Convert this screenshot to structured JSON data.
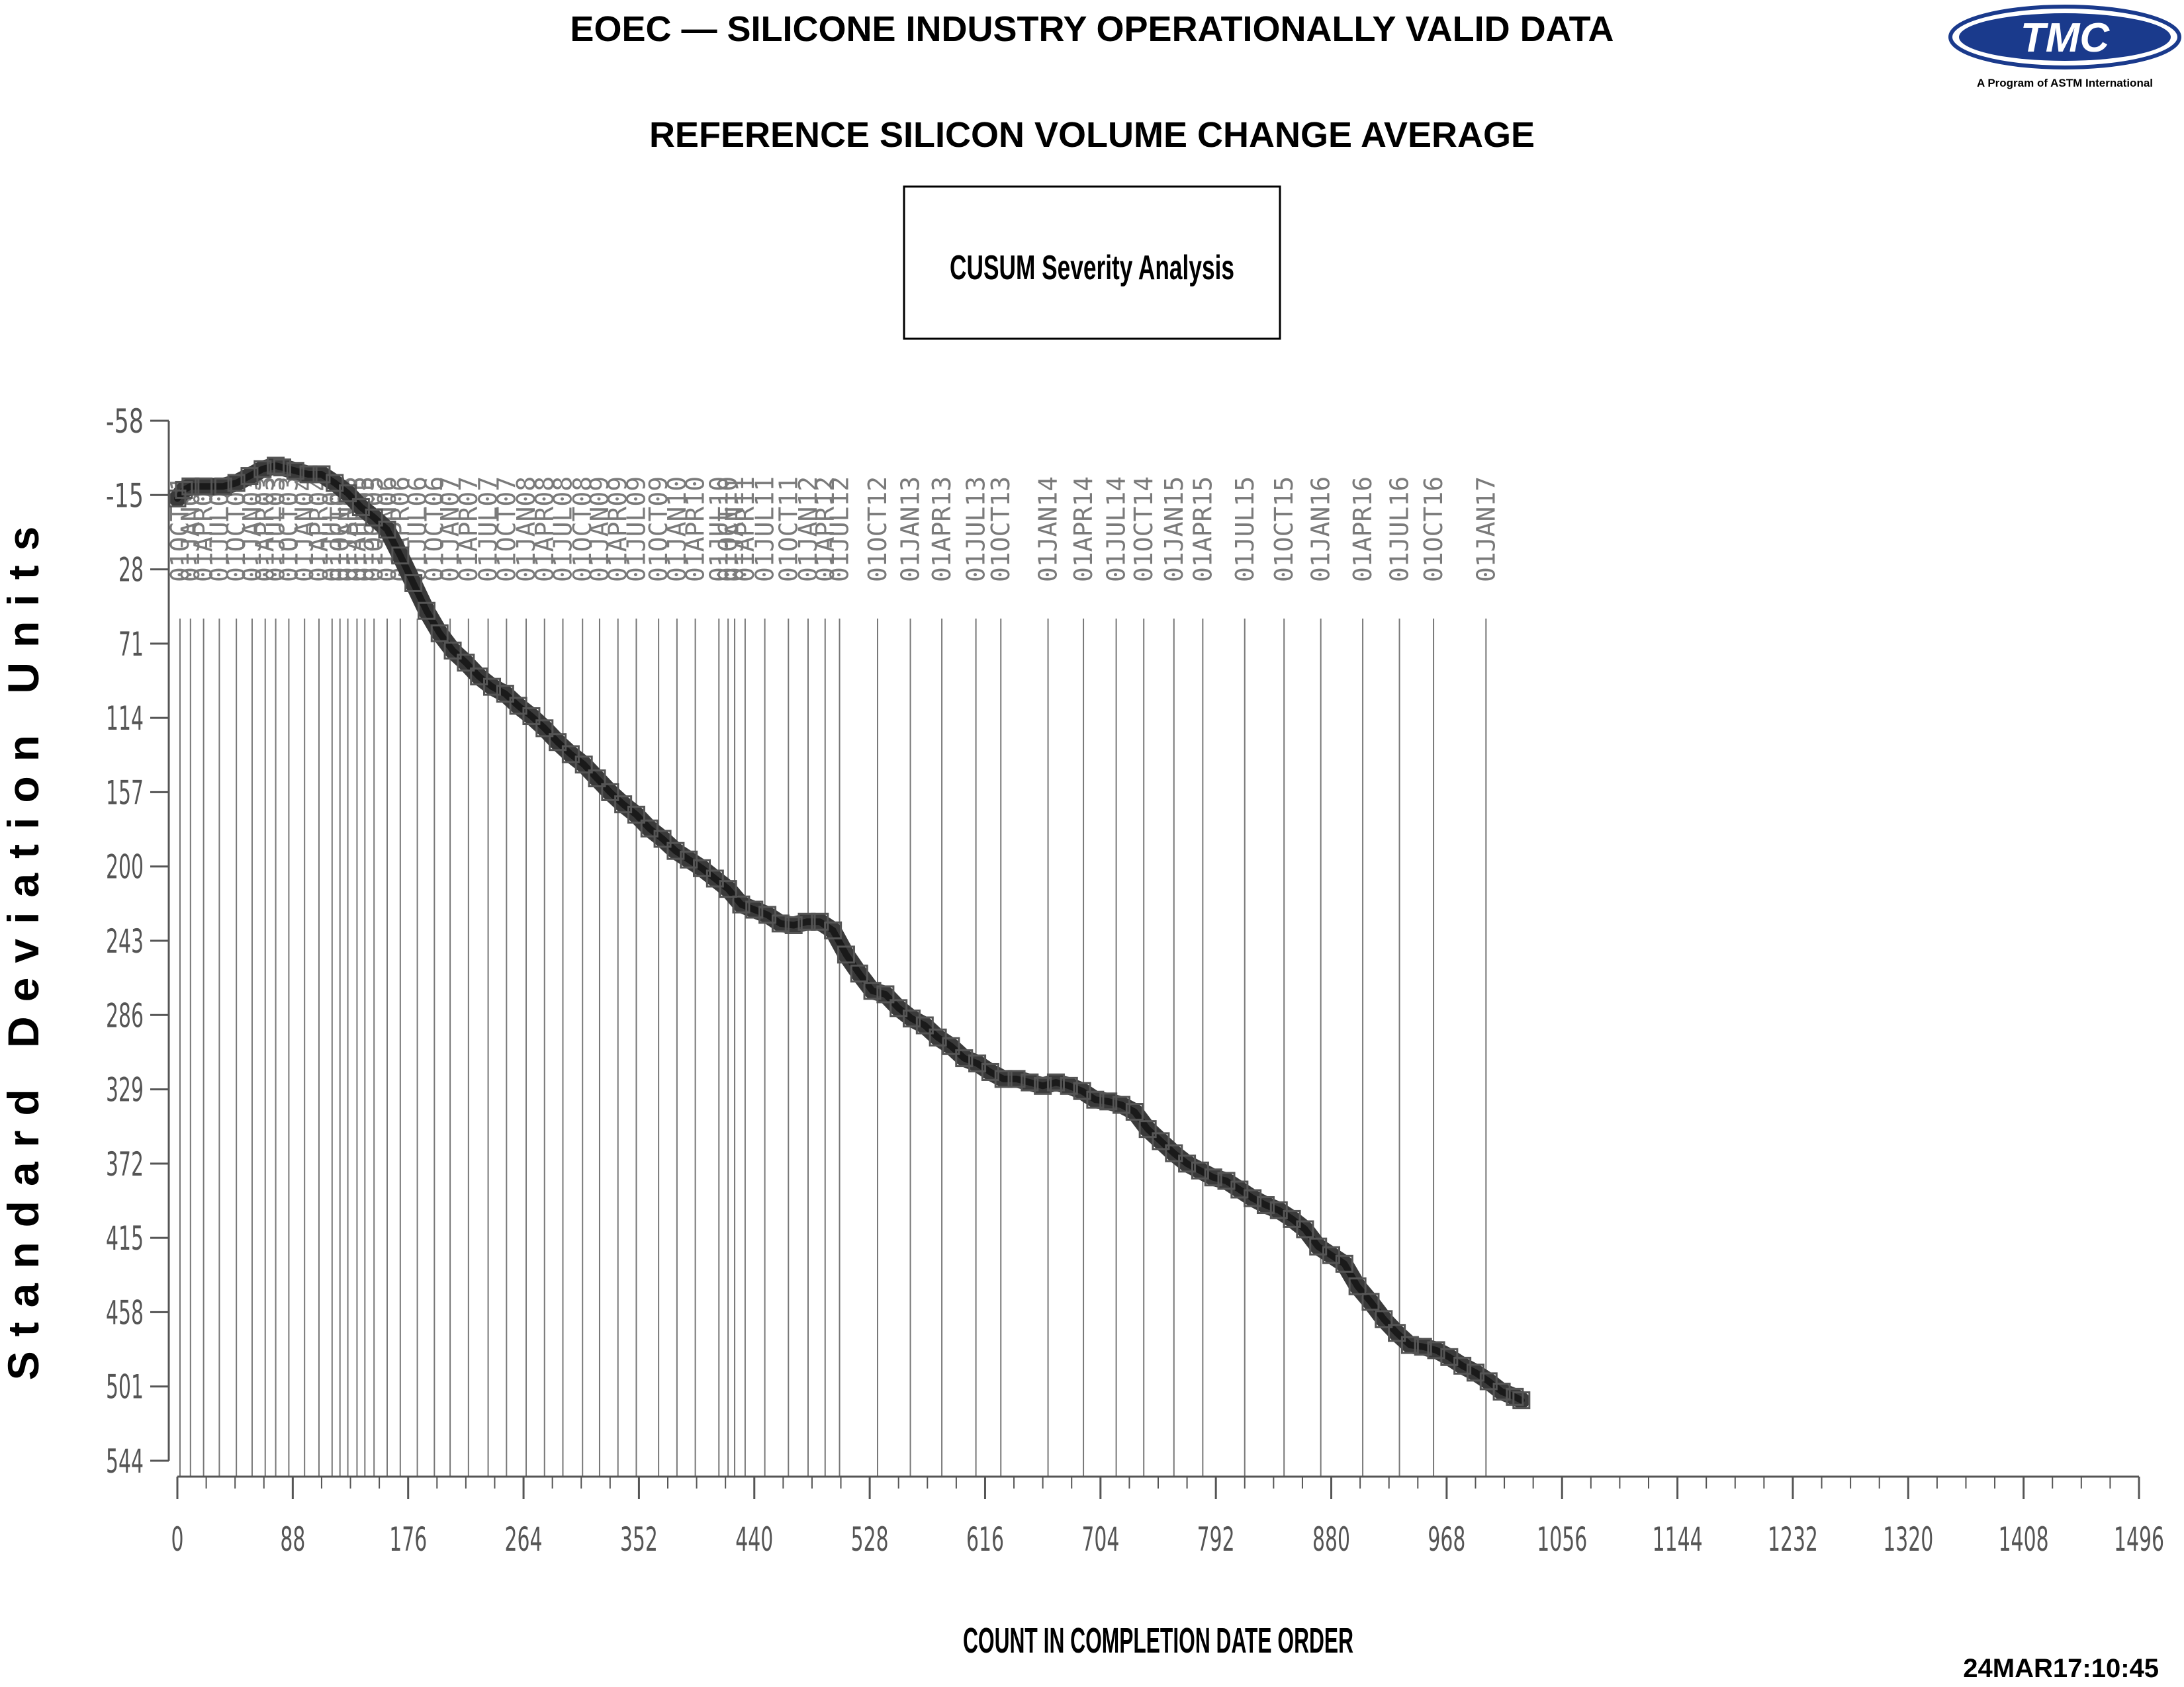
{
  "header": {
    "title": "EOEC — SILICONE INDUSTRY OPERATIONALLY VALID DATA",
    "subtitle": "REFERENCE SILICON VOLUME CHANGE AVERAGE",
    "box_label": "CUSUM Severity Analysis",
    "logo_text": "TMC",
    "logo_caption": "A Program of ASTM International"
  },
  "footer": {
    "timestamp": "24MAR17:10:45"
  },
  "colors": {
    "line": "#3a3a3a",
    "marker": "#555555",
    "axis": "#555555",
    "date_line": "#777777",
    "logo": "#1a3a8c"
  },
  "chart_data": {
    "type": "line",
    "title": "CUSUM Severity Analysis",
    "xlabel": "COUNT IN COMPLETION DATE ORDER",
    "ylabel": "Standard Deviation Units",
    "xlim": [
      0,
      1496
    ],
    "ylim": [
      -58,
      544
    ],
    "y_inverted": true,
    "x_ticks": [
      0,
      88,
      176,
      264,
      352,
      440,
      528,
      616,
      704,
      792,
      880,
      968,
      1056,
      1144,
      1232,
      1320,
      1408,
      1496
    ],
    "x_minor_step": 22,
    "y_ticks": [
      -58,
      -15,
      28,
      71,
      114,
      157,
      200,
      243,
      286,
      329,
      372,
      415,
      458,
      501,
      544
    ],
    "y_tick_labels": [
      "-58",
      "-15",
      "28",
      "71",
      "114",
      "157",
      "200",
      "243",
      "286",
      "329",
      "372",
      "415",
      "458",
      "501",
      "544"
    ],
    "series": [
      {
        "name": "",
        "marker": "square",
        "x": [
          0,
          5,
          10,
          20,
          35,
          45,
          55,
          65,
          75,
          80,
          90,
          100,
          110,
          120,
          130,
          140,
          150,
          160,
          170,
          180,
          190,
          200,
          210,
          220,
          230,
          240,
          250,
          260,
          270,
          280,
          290,
          300,
          310,
          320,
          330,
          340,
          350,
          360,
          370,
          380,
          390,
          400,
          410,
          420,
          430,
          440,
          450,
          460,
          470,
          480,
          490,
          500,
          510,
          520,
          530,
          540,
          550,
          560,
          570,
          580,
          590,
          600,
          610,
          620,
          630,
          640,
          650,
          660,
          670,
          680,
          690,
          700,
          710,
          720,
          730,
          740,
          750,
          760,
          770,
          780,
          790,
          800,
          810,
          820,
          830,
          840,
          850,
          860,
          870,
          880,
          890,
          900,
          910,
          920,
          930,
          940,
          950,
          960,
          970,
          980,
          990,
          1000,
          1010,
          1020,
          1025
        ],
        "y": [
          -13,
          -18,
          -20,
          -20,
          -20,
          -22,
          -26,
          -30,
          -32,
          -31,
          -29,
          -27,
          -27,
          -22,
          -16,
          -8,
          -2,
          5,
          20,
          36,
          52,
          65,
          75,
          82,
          90,
          96,
          100,
          107,
          113,
          120,
          128,
          135,
          141,
          149,
          157,
          164,
          170,
          178,
          184,
          191,
          196,
          201,
          207,
          213,
          222,
          225,
          228,
          233,
          234,
          232,
          232,
          237,
          251,
          262,
          272,
          274,
          282,
          288,
          292,
          299,
          304,
          311,
          314,
          319,
          323,
          323,
          325,
          327,
          325,
          327,
          330,
          335,
          336,
          338,
          342,
          352,
          359,
          366,
          372,
          376,
          380,
          382,
          387,
          392,
          396,
          399,
          404,
          410,
          420,
          425,
          430,
          443,
          452,
          462,
          470,
          477,
          478,
          480,
          484,
          489,
          493,
          498,
          504,
          507,
          509
        ]
      }
    ],
    "date_markers": [
      {
        "x": 2,
        "label": "01OCT01"
      },
      {
        "x": 10,
        "label": "01JAN02"
      },
      {
        "x": 20,
        "label": "01APR02"
      },
      {
        "x": 32,
        "label": "01JUL02"
      },
      {
        "x": 45,
        "label": "01OCT02"
      },
      {
        "x": 57,
        "label": "01JAN03"
      },
      {
        "x": 67,
        "label": "01APR03"
      },
      {
        "x": 75,
        "label": "01JUL03"
      },
      {
        "x": 85,
        "label": "01OCT03"
      },
      {
        "x": 97,
        "label": "01JAN04"
      },
      {
        "x": 108,
        "label": "01APR04"
      },
      {
        "x": 118,
        "label": "01JUL04"
      },
      {
        "x": 124,
        "label": "01OCT04"
      },
      {
        "x": 130,
        "label": "01JAN05"
      },
      {
        "x": 137,
        "label": "01APR05"
      },
      {
        "x": 143,
        "label": "01JUL05"
      },
      {
        "x": 150,
        "label": "01OCT05"
      },
      {
        "x": 160,
        "label": "01JAN06"
      },
      {
        "x": 170,
        "label": "01APR06"
      },
      {
        "x": 183,
        "label": "01JUL06"
      },
      {
        "x": 196,
        "label": "01OCT06"
      },
      {
        "x": 208,
        "label": "01JAN07"
      },
      {
        "x": 222,
        "label": "01APR07"
      },
      {
        "x": 237,
        "label": "01JUL07"
      },
      {
        "x": 251,
        "label": "01OCT07"
      },
      {
        "x": 266,
        "label": "01JAN08"
      },
      {
        "x": 280,
        "label": "01APR08"
      },
      {
        "x": 294,
        "label": "01JUL08"
      },
      {
        "x": 309,
        "label": "01OCT08"
      },
      {
        "x": 322,
        "label": "01JAN09"
      },
      {
        "x": 336,
        "label": "01APR09"
      },
      {
        "x": 350,
        "label": "01JUL09"
      },
      {
        "x": 367,
        "label": "01OCT09"
      },
      {
        "x": 381,
        "label": "01JAN10"
      },
      {
        "x": 395,
        "label": "01APR10"
      },
      {
        "x": 413,
        "label": "01JUL10"
      },
      {
        "x": 420,
        "label": "01OCT10"
      },
      {
        "x": 425,
        "label": "01JAN11"
      },
      {
        "x": 433,
        "label": "01APR11"
      },
      {
        "x": 448,
        "label": "01JUL11"
      },
      {
        "x": 466,
        "label": "01OCT11"
      },
      {
        "x": 481,
        "label": "01JAN12"
      },
      {
        "x": 494,
        "label": "01APR12"
      },
      {
        "x": 505,
        "label": "01JUL12"
      },
      {
        "x": 534,
        "label": "01OCT12"
      },
      {
        "x": 559,
        "label": "01JAN13"
      },
      {
        "x": 583,
        "label": "01APR13"
      },
      {
        "x": 609,
        "label": "01JUL13"
      },
      {
        "x": 628,
        "label": "01OCT13"
      },
      {
        "x": 664,
        "label": "01JAN14"
      },
      {
        "x": 691,
        "label": "01APR14"
      },
      {
        "x": 716,
        "label": "01JUL14"
      },
      {
        "x": 737,
        "label": "01OCT14"
      },
      {
        "x": 760,
        "label": "01JAN15"
      },
      {
        "x": 782,
        "label": "01APR15"
      },
      {
        "x": 814,
        "label": "01JUL15"
      },
      {
        "x": 844,
        "label": "01OCT15"
      },
      {
        "x": 872,
        "label": "01JAN16"
      },
      {
        "x": 904,
        "label": "01APR16"
      },
      {
        "x": 932,
        "label": "01JUL16"
      },
      {
        "x": 958,
        "label": "01OCT16"
      },
      {
        "x": 998,
        "label": "01JAN17"
      }
    ],
    "grid": false,
    "legend": "none"
  }
}
